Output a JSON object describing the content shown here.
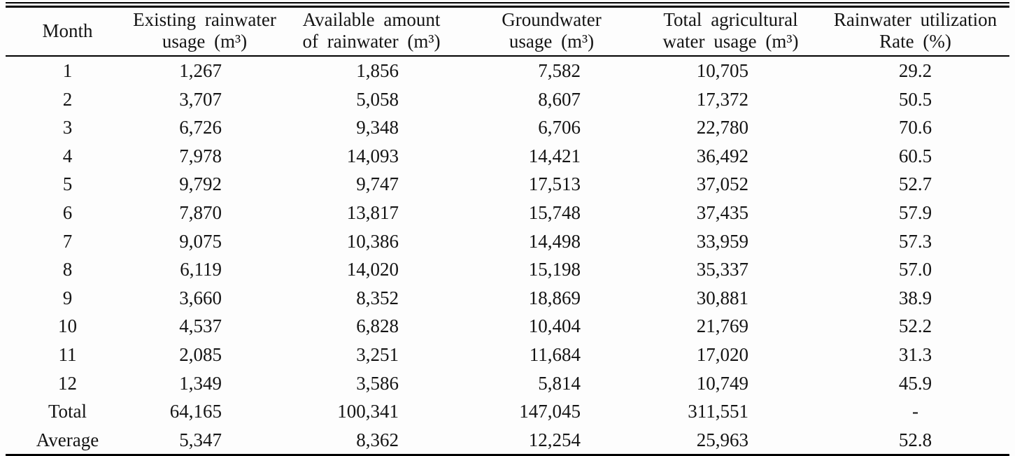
{
  "table": {
    "columns": [
      {
        "id": "month",
        "lines": [
          "Month"
        ]
      },
      {
        "id": "existing-rainwater-usage",
        "lines": [
          "Existing rainwater",
          "usage (m³)"
        ]
      },
      {
        "id": "available-amount-of-rainwater",
        "lines": [
          "Available amount",
          "of rainwater (m³)"
        ]
      },
      {
        "id": "groundwater-usage",
        "lines": [
          "Groundwater",
          "usage (m³)"
        ]
      },
      {
        "id": "total-agricultural-water-usage",
        "lines": [
          "Total agricultural",
          "water usage (m³)"
        ]
      },
      {
        "id": "rainwater-utilization-rate",
        "lines": [
          "Rainwater utilization",
          "Rate (%)"
        ]
      }
    ],
    "rows": [
      [
        "1",
        "1,267",
        "1,856",
        "7,582",
        "10,705",
        "29.2"
      ],
      [
        "2",
        "3,707",
        "5,058",
        "8,607",
        "17,372",
        "50.5"
      ],
      [
        "3",
        "6,726",
        "9,348",
        "6,706",
        "22,780",
        "70.6"
      ],
      [
        "4",
        "7,978",
        "14,093",
        "14,421",
        "36,492",
        "60.5"
      ],
      [
        "5",
        "9,792",
        "9,747",
        "17,513",
        "37,052",
        "52.7"
      ],
      [
        "6",
        "7,870",
        "13,817",
        "15,748",
        "37,435",
        "57.9"
      ],
      [
        "7",
        "9,075",
        "10,386",
        "14,498",
        "33,959",
        "57.3"
      ],
      [
        "8",
        "6,119",
        "14,020",
        "15,198",
        "35,337",
        "57.0"
      ],
      [
        "9",
        "3,660",
        "8,352",
        "18,869",
        "30,881",
        "38.9"
      ],
      [
        "10",
        "4,537",
        "6,828",
        "10,404",
        "21,769",
        "52.2"
      ],
      [
        "11",
        "2,085",
        "3,251",
        "11,684",
        "17,020",
        "31.3"
      ],
      [
        "12",
        "1,349",
        "3,586",
        "5,814",
        "10,749",
        "45.9"
      ],
      [
        "Total",
        "64,165",
        "100,341",
        "147,045",
        "311,551",
        "-"
      ],
      [
        "Average",
        "5,347",
        "8,362",
        "12,254",
        "25,963",
        "52.8"
      ]
    ]
  },
  "colors": {
    "text": "#141414",
    "rule": "#000000",
    "background": "#fdfdfd"
  }
}
